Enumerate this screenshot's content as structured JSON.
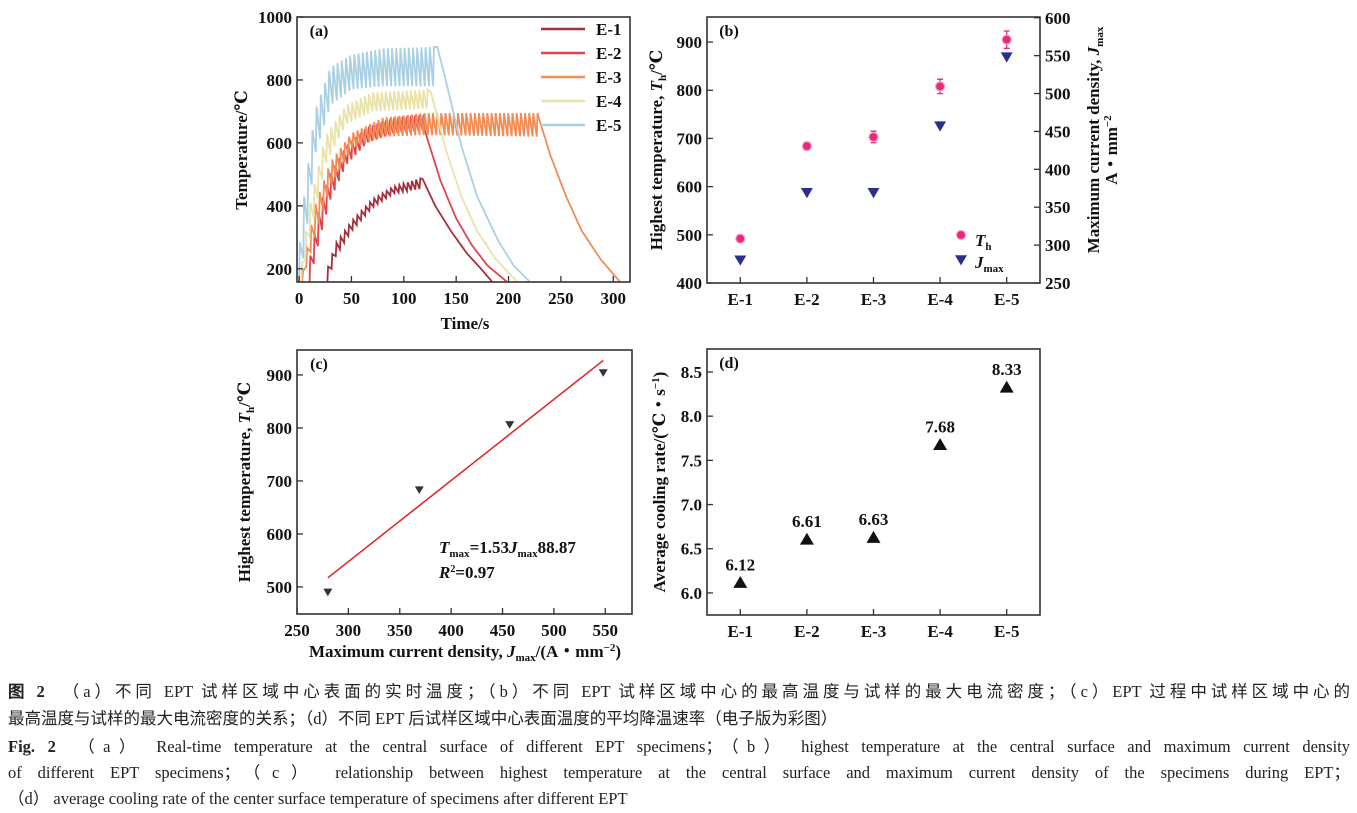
{
  "chart_data": [
    {
      "panel": "(a)",
      "type": "line",
      "xlabel": "Time/s",
      "ylabel": "Temperature/℃",
      "xlim": [
        -2,
        316
      ],
      "ylim": [
        158,
        1000
      ],
      "xticks": [
        0,
        50,
        100,
        150,
        200,
        250,
        300
      ],
      "yticks": [
        200,
        400,
        600,
        800,
        1000
      ],
      "legend_position": "top-right",
      "series": [
        {
          "name": "E-1",
          "color": "#a3313d",
          "start_s": 27,
          "heating_end_s": 118,
          "upper": [
            [
              27,
              200
            ],
            [
              35,
              280
            ],
            [
              50,
              350
            ],
            [
              70,
              420
            ],
            [
              90,
              460
            ],
            [
              118,
              490
            ]
          ],
          "lower": [
            [
              27,
              160
            ],
            [
              35,
              240
            ],
            [
              50,
              320
            ],
            [
              70,
              395
            ],
            [
              90,
              440
            ],
            [
              118,
              455
            ]
          ],
          "cooling": [
            [
              118,
              485
            ],
            [
              130,
              400
            ],
            [
              145,
              320
            ],
            [
              160,
              250
            ],
            [
              175,
              195
            ],
            [
              184,
              160
            ]
          ]
        },
        {
          "name": "E-2",
          "color": "#e2434e",
          "start_s": 10,
          "heating_end_s": 120,
          "upper": [
            [
              10,
              230
            ],
            [
              20,
              400
            ],
            [
              30,
              500
            ],
            [
              45,
              590
            ],
            [
              65,
              650
            ],
            [
              90,
              680
            ],
            [
              120,
              690
            ]
          ],
          "lower": [
            [
              10,
              160
            ],
            [
              20,
              300
            ],
            [
              30,
              420
            ],
            [
              45,
              530
            ],
            [
              65,
              600
            ],
            [
              90,
              630
            ],
            [
              120,
              640
            ]
          ],
          "cooling": [
            [
              120,
              640
            ],
            [
              135,
              480
            ],
            [
              150,
              360
            ],
            [
              165,
              275
            ],
            [
              180,
              210
            ],
            [
              198,
              160
            ]
          ]
        },
        {
          "name": "E-3",
          "color": "#f28c55",
          "start_s": 3,
          "heating_end_s": 228,
          "upper": [
            [
              3,
              180
            ],
            [
              15,
              400
            ],
            [
              30,
              540
            ],
            [
              50,
              630
            ],
            [
              80,
              680
            ],
            [
              120,
              695
            ],
            [
              228,
              695
            ]
          ],
          "lower": [
            [
              3,
              160
            ],
            [
              15,
              300
            ],
            [
              30,
              460
            ],
            [
              50,
              580
            ],
            [
              80,
              620
            ],
            [
              120,
              625
            ],
            [
              228,
              620
            ]
          ],
          "cooling": [
            [
              228,
              690
            ],
            [
              240,
              560
            ],
            [
              255,
              430
            ],
            [
              270,
              320
            ],
            [
              288,
              230
            ],
            [
              306,
              160
            ]
          ]
        },
        {
          "name": "E-4",
          "color": "#e9e2a9",
          "start_s": 2,
          "heating_end_s": 126,
          "upper": [
            [
              2,
              200
            ],
            [
              10,
              400
            ],
            [
              25,
              620
            ],
            [
              45,
              720
            ],
            [
              70,
              760
            ],
            [
              126,
              770
            ]
          ],
          "lower": [
            [
              2,
              160
            ],
            [
              10,
              300
            ],
            [
              25,
              530
            ],
            [
              45,
              660
            ],
            [
              70,
              700
            ],
            [
              126,
              710
            ]
          ],
          "cooling": [
            [
              126,
              760
            ],
            [
              140,
              580
            ],
            [
              155,
              430
            ],
            [
              170,
              320
            ],
            [
              188,
              230
            ],
            [
              208,
              160
            ]
          ]
        },
        {
          "name": "E-5",
          "color": "#a9d1e3",
          "start_s": 0,
          "heating_end_s": 132,
          "upper": [
            [
              0,
              260
            ],
            [
              5,
              440
            ],
            [
              15,
              700
            ],
            [
              30,
              840
            ],
            [
              50,
              880
            ],
            [
              80,
              900
            ],
            [
              132,
              905
            ]
          ],
          "lower": [
            [
              0,
              160
            ],
            [
              5,
              250
            ],
            [
              15,
              560
            ],
            [
              30,
              720
            ],
            [
              50,
              770
            ],
            [
              80,
              780
            ],
            [
              132,
              780
            ]
          ],
          "cooling": [
            [
              132,
              905
            ],
            [
              140,
              800
            ],
            [
              155,
              590
            ],
            [
              170,
              430
            ],
            [
              190,
              290
            ],
            [
              205,
              210
            ],
            [
              220,
              160
            ]
          ]
        }
      ]
    },
    {
      "panel": "(b)",
      "type": "scatter",
      "categories": [
        "E-1",
        "E-2",
        "E-3",
        "E-4",
        "E-5"
      ],
      "ylabel_left": {
        "text": "Highest temperature, ",
        "var": "T",
        "sub": "h",
        "unit": "/℃"
      },
      "ylabel_right": {
        "text": "Maximum current density, ",
        "var": "J",
        "sub": "max",
        "line2": "A・mm",
        "sup": "−2"
      },
      "ylim_left": [
        400,
        952
      ],
      "ylim_right": [
        250,
        601
      ],
      "yticks_left": [
        400,
        500,
        600,
        700,
        800,
        900
      ],
      "yticks_right": [
        250,
        300,
        350,
        400,
        450,
        500,
        550,
        600
      ],
      "legend_position": "bottom-right",
      "series": [
        {
          "name": "T",
          "name_sub": "h",
          "axis": "left",
          "marker": "circle",
          "color": "#e8287a",
          "values": [
            492,
            684,
            703,
            808,
            905
          ],
          "errors": [
            5,
            8,
            12,
            15,
            18
          ]
        },
        {
          "name": "J",
          "name_sub": "max",
          "axis": "right",
          "marker": "triangle-down",
          "color": "#2b2f8c",
          "values": [
            280,
            369,
            369,
            457,
            548
          ]
        }
      ]
    },
    {
      "panel": "(c)",
      "type": "scatter",
      "xlabel": {
        "text": "Maximum current density, ",
        "var": "J",
        "sub": "max",
        "unit": "/(A・mm",
        "sup": "−2",
        "close": ")"
      },
      "ylabel": {
        "text": "Highest temperature, ",
        "var": "T",
        "sub": "h",
        "unit": "/℃"
      },
      "xlim": [
        250,
        576
      ],
      "ylim": [
        449,
        947
      ],
      "xticks": [
        250,
        300,
        350,
        400,
        450,
        500,
        550
      ],
      "yticks": [
        500,
        600,
        700,
        800,
        900
      ],
      "points": [
        [
          280,
          490
        ],
        [
          369,
          683
        ],
        [
          457,
          806
        ],
        [
          548,
          904
        ]
      ],
      "marker_color": "#333333",
      "fit": {
        "slope": 1.53,
        "intercept": 88.87,
        "x_range": [
          280,
          548
        ],
        "color": "#e02020"
      },
      "equation": {
        "lhs_var": "T",
        "lhs_sub": "max",
        "mid": "=1.53",
        "rhs_var": "J",
        "rhs_sub": "max",
        "tail": "88.87"
      },
      "r2": {
        "var": "R",
        "sup": "2",
        "value": "=0.97"
      }
    },
    {
      "panel": "(d)",
      "type": "scatter",
      "categories": [
        "E-1",
        "E-2",
        "E-3",
        "E-4",
        "E-5"
      ],
      "ylabel": {
        "text": "Average cooling rate/(℃・s",
        "sup": "−1",
        "close": ")"
      },
      "ylim": [
        5.75,
        8.76
      ],
      "yticks": [
        6.0,
        6.5,
        7.0,
        7.5,
        8.0,
        8.5
      ],
      "values": [
        6.12,
        6.61,
        6.63,
        7.68,
        8.33
      ],
      "data_labels": [
        "6.12",
        "6.61",
        "6.63",
        "7.68",
        "8.33"
      ],
      "marker": "triangle-up",
      "marker_color": "#111111"
    }
  ],
  "caption": {
    "cn_label": "图 2",
    "cn_line1": "（a）不同 EPT 试样区域中心表面的实时温度；（b）不同 EPT 试样区域中心的最高温度与试样的最大电流密度；（c）EPT 过程中试样区域中心的",
    "cn_line2": "最高温度与试样的最大电流密度的关系；（d）不同 EPT 后试样区域中心表面温度的平均降温速率（电子版为彩图）",
    "en_label": "Fig. 2",
    "en_line1": "（a） Real-time temperature at the central surface of different EPT specimens；（b） highest temperature at the central surface and maximum current density",
    "en_line2": "of different EPT specimens；（c） relationship between highest temperature at the central surface and maximum current density of the specimens during EPT；",
    "en_line3": "（d） average cooling rate of the center surface temperature of specimens after different EPT"
  }
}
